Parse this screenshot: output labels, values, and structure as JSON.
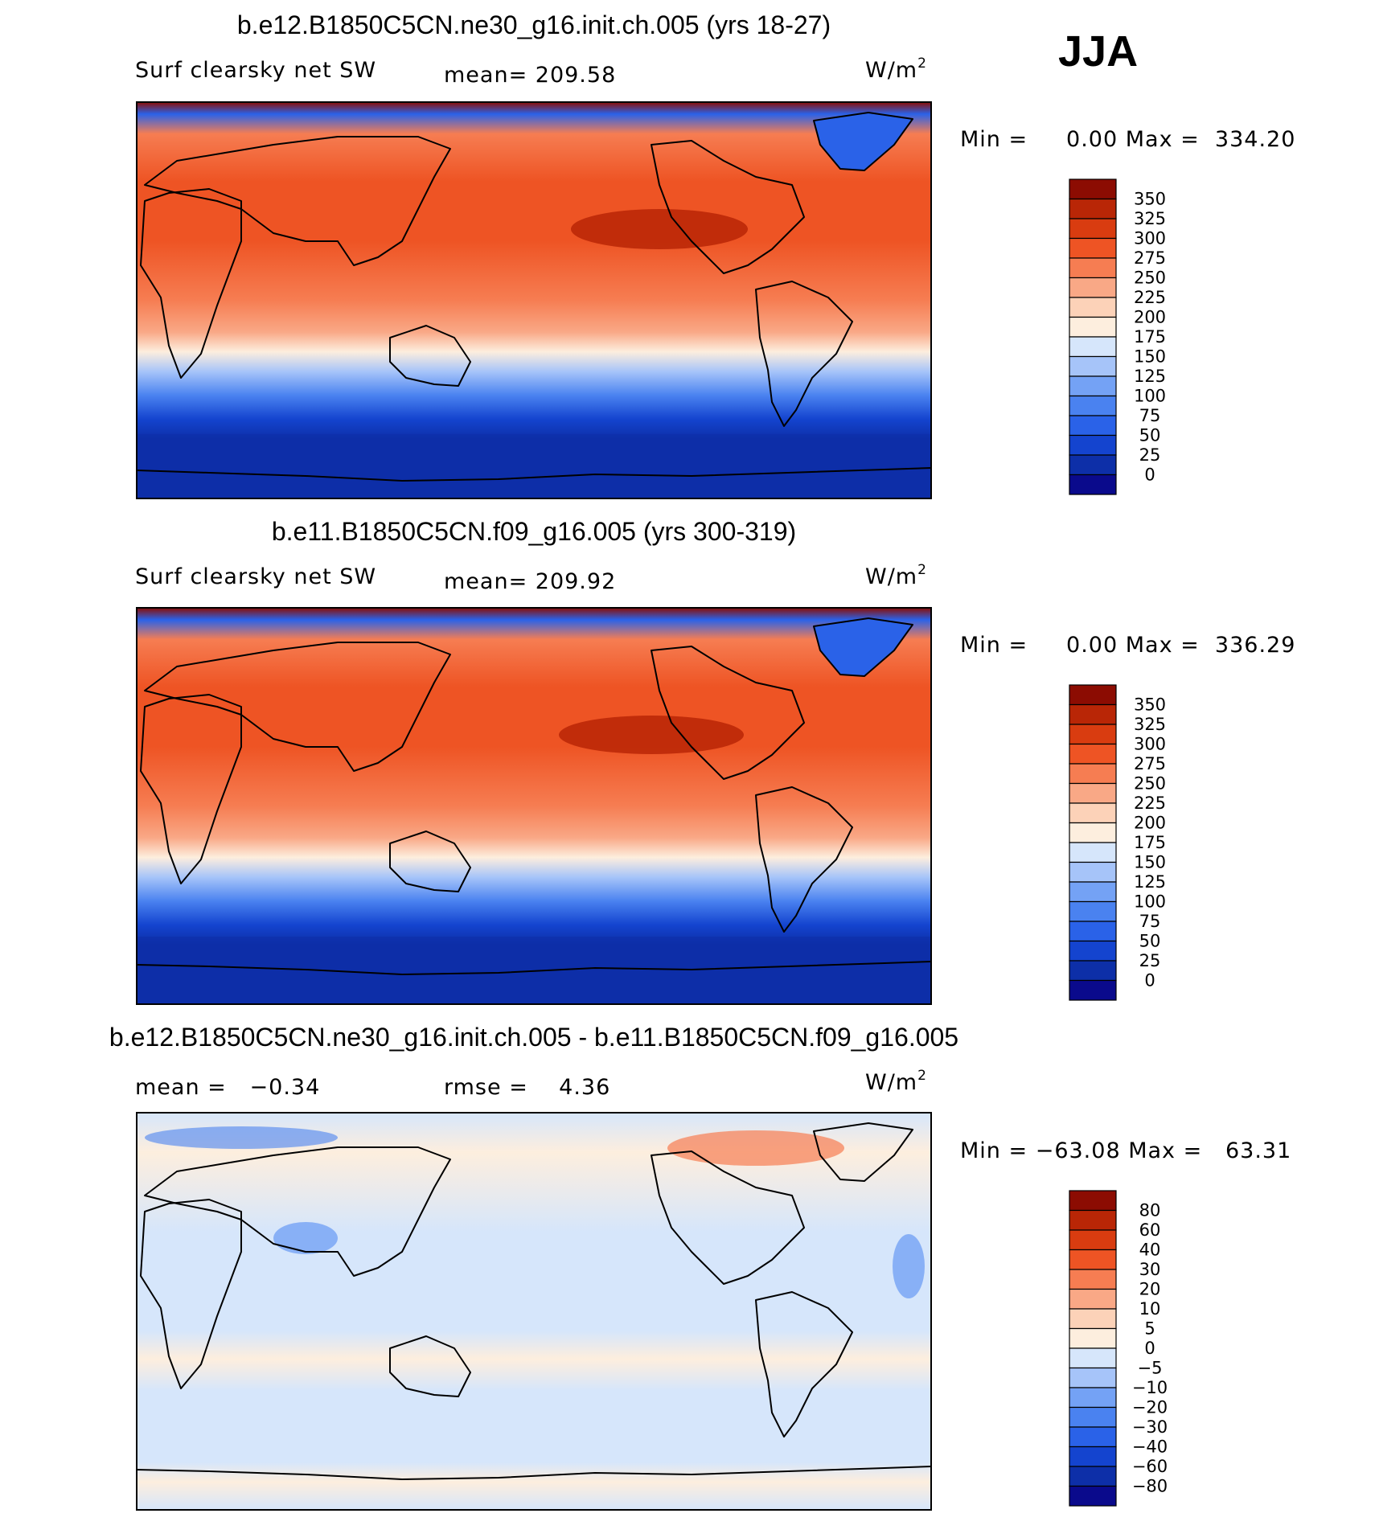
{
  "season": "JJA",
  "colors": {
    "abs": [
      "#0a0a8c",
      "#0d2fa8",
      "#1444cf",
      "#2a62e8",
      "#4a82f0",
      "#74a2f5",
      "#a6c4f9",
      "#d6e6fb",
      "#fdeede",
      "#fcd2b8",
      "#f9a886",
      "#f67d52",
      "#ee5424",
      "#d93c10",
      "#b92606",
      "#8c0c02"
    ],
    "diff": [
      "#0a0a8c",
      "#0d2fa8",
      "#1444cf",
      "#2a62e8",
      "#4a82f0",
      "#74a2f5",
      "#a6c4f9",
      "#d6e6fb",
      "#fdeede",
      "#fcd2b8",
      "#f9a886",
      "#f67d52",
      "#ee5424",
      "#d93c10",
      "#b92606",
      "#8c0c02"
    ]
  },
  "chart_data": [
    {
      "type": "heatmap",
      "title": "b.e12.B1850C5CN.ne30_g16.init.ch.005 (yrs 18-27)",
      "variable": "Surf clearsky net SW",
      "mean_label": "mean= 209.58",
      "units": "W/m",
      "units_sup": "2",
      "minmax": "Min =     0.00 Max =  334.20",
      "min": 0.0,
      "max": 334.2,
      "levels": [
        "350",
        "325",
        "300",
        "275",
        "250",
        "225",
        "200",
        "175",
        "150",
        "125",
        "100",
        "75",
        "50",
        "25",
        "0"
      ],
      "season_field": [
        [
          0,
          10
        ],
        [
          30,
          70
        ],
        [
          60,
          160
        ],
        [
          90,
          235
        ],
        [
          120,
          285
        ],
        [
          150,
          310
        ],
        [
          165,
          322
        ]
      ]
    },
    {
      "type": "heatmap",
      "title": "b.e11.B1850C5CN.f09_g16.005 (yrs 300-319)",
      "variable": "Surf clearsky net SW",
      "mean_label": "mean= 209.92",
      "units": "W/m",
      "units_sup": "2",
      "minmax": "Min =     0.00 Max =  336.29",
      "min": 0.0,
      "max": 336.29,
      "levels": [
        "350",
        "325",
        "300",
        "275",
        "250",
        "225",
        "200",
        "175",
        "150",
        "125",
        "100",
        "75",
        "50",
        "25",
        "0"
      ]
    },
    {
      "type": "heatmap",
      "title": "b.e12.B1850C5CN.ne30_g16.init.ch.005 - b.e11.B1850C5CN.f09_g16.005",
      "mean_label": "mean =   −0.34",
      "rmse_label": "rmse =    4.36",
      "mean": -0.34,
      "rmse": 4.36,
      "units": "W/m",
      "units_sup": "2",
      "minmax": "Min = −63.08 Max =   63.31",
      "min": -63.08,
      "max": 63.31,
      "levels": [
        "80",
        "60",
        "40",
        "30",
        "20",
        "10",
        "5",
        "0",
        "−5",
        "−10",
        "−20",
        "−30",
        "−40",
        "−60",
        "−80"
      ]
    }
  ]
}
